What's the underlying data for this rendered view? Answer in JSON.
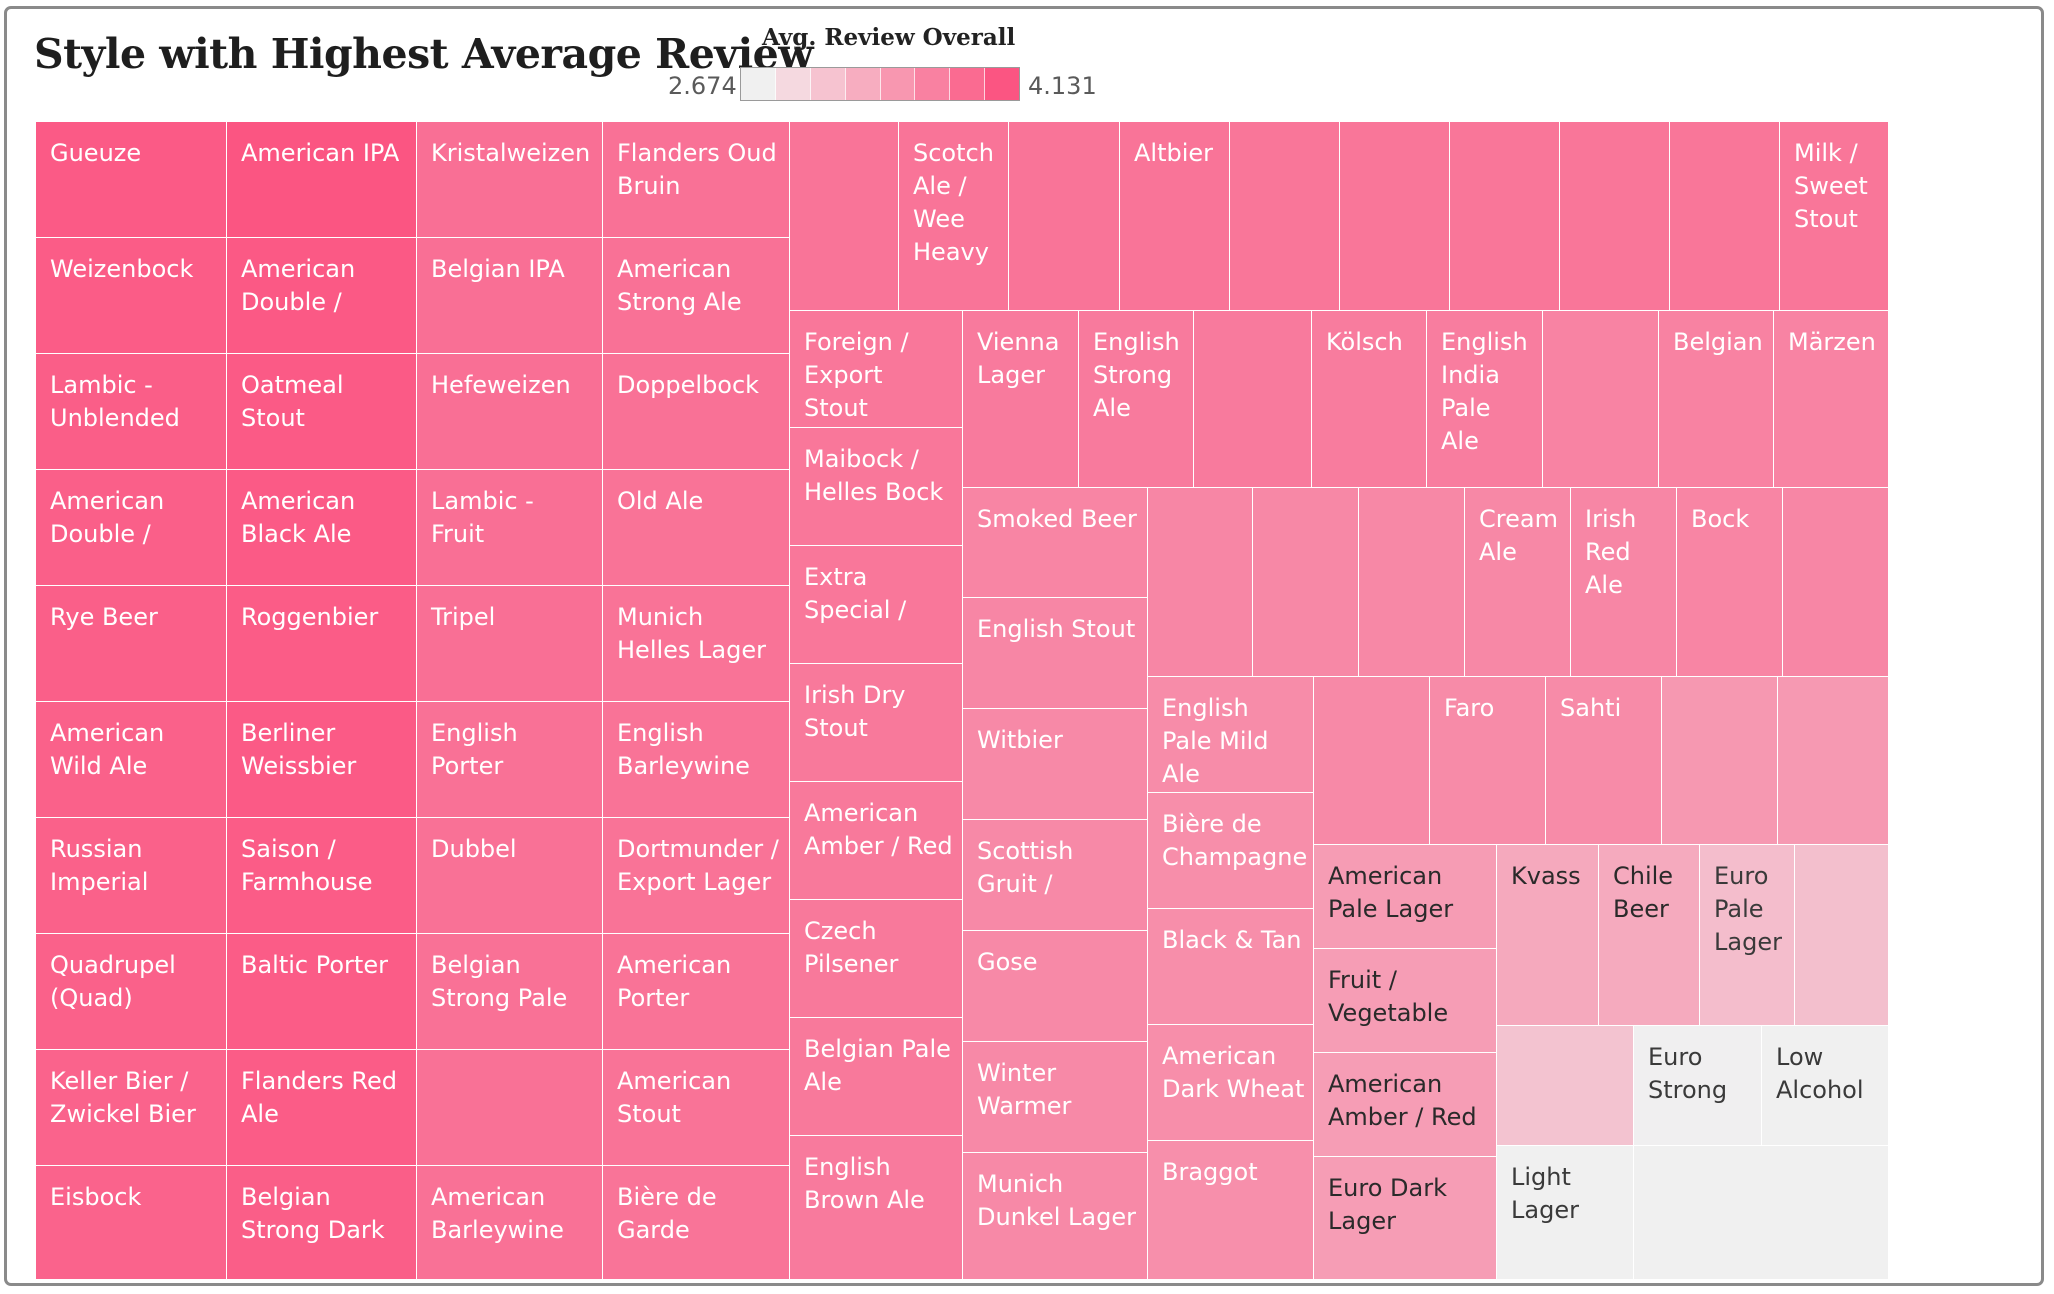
{
  "title": "Style with Highest Average Review",
  "legend": {
    "title": "Avg. Review Overall",
    "min_label": "2.674",
    "max_label": "4.131",
    "colors": [
      "#f0f0f0",
      "#f5d9e0",
      "#f6c3d0",
      "#f7adc0",
      "#f897b0",
      "#f981a1",
      "#fa6b91",
      "#fb5582"
    ]
  },
  "chart_data": {
    "type": "treemap",
    "measure": "Avg. Review Overall",
    "color_range": [
      2.674,
      4.131
    ],
    "cells": [
      {
        "name": "Gueuze",
        "value": 4.1
      },
      {
        "name": "Weizenbock",
        "value": 4.09
      },
      {
        "name": "Lambic - Unblended",
        "value": 4.08
      },
      {
        "name": "American Double /",
        "value": 4.07
      },
      {
        "name": "Rye Beer",
        "value": 4.07
      },
      {
        "name": "American Wild Ale",
        "value": 4.06
      },
      {
        "name": "Russian Imperial",
        "value": 4.06
      },
      {
        "name": "Quadrupel (Quad)",
        "value": 4.06
      },
      {
        "name": "Keller Bier / Zwickel Bier",
        "value": 4.05
      },
      {
        "name": "Eisbock",
        "value": 4.05
      },
      {
        "name": "American IPA",
        "value": 4.13
      },
      {
        "name": "American Double /",
        "value": 4.11
      },
      {
        "name": "Oatmeal Stout",
        "value": 4.1
      },
      {
        "name": "American Black Ale",
        "value": 4.1
      },
      {
        "name": "Roggenbier",
        "value": 4.09
      },
      {
        "name": "Berliner Weissbier",
        "value": 4.1
      },
      {
        "name": "Saison / Farmhouse",
        "value": 4.09
      },
      {
        "name": "Baltic Porter",
        "value": 4.09
      },
      {
        "name": "Flanders Red Ale",
        "value": 4.09
      },
      {
        "name": "Belgian Strong Dark",
        "value": 4.08
      },
      {
        "name": "Kristalweizen",
        "value": 3.97
      },
      {
        "name": "Belgian IPA",
        "value": 3.97
      },
      {
        "name": "Hefeweizen",
        "value": 3.97
      },
      {
        "name": "Lambic - Fruit",
        "value": 3.97
      },
      {
        "name": "Tripel",
        "value": 3.97
      },
      {
        "name": "English Porter",
        "value": 3.96
      },
      {
        "name": "Dubbel",
        "value": 3.96
      },
      {
        "name": "Belgian Strong Pale",
        "value": 3.96
      },
      {
        "name": "",
        "value": 3.96
      },
      {
        "name": "American Barleywine",
        "value": 3.96
      },
      {
        "name": "Flanders Oud Bruin",
        "value": 3.96
      },
      {
        "name": "American Strong Ale",
        "value": 3.96
      },
      {
        "name": "Doppelbock",
        "value": 3.96
      },
      {
        "name": "Old Ale",
        "value": 3.95
      },
      {
        "name": "Munich Helles Lager",
        "value": 3.95
      },
      {
        "name": "English Barleywine",
        "value": 3.95
      },
      {
        "name": "Dortmunder / Export Lager",
        "value": 3.95
      },
      {
        "name": "American Porter",
        "value": 3.95
      },
      {
        "name": "American Stout",
        "value": 3.95
      },
      {
        "name": "Bière de Garde",
        "value": 3.94
      },
      {
        "name": "",
        "value": 3.94
      },
      {
        "name": "Scotch Ale / Wee Heavy",
        "value": 3.94
      },
      {
        "name": "",
        "value": 3.94
      },
      {
        "name": "Altbier",
        "value": 3.94
      },
      {
        "name": "",
        "value": 3.93
      },
      {
        "name": "",
        "value": 3.93
      },
      {
        "name": "",
        "value": 3.93
      },
      {
        "name": "",
        "value": 3.93
      },
      {
        "name": "",
        "value": 3.93
      },
      {
        "name": "Milk / Sweet Stout",
        "value": 3.93
      },
      {
        "name": "Foreign / Export Stout",
        "value": 3.92
      },
      {
        "name": "Maibock / Helles Bock",
        "value": 3.92
      },
      {
        "name": "Extra Special /",
        "value": 3.92
      },
      {
        "name": "Irish Dry Stout",
        "value": 3.91
      },
      {
        "name": "American Amber / Red",
        "value": 3.91
      },
      {
        "name": "Czech Pilsener",
        "value": 3.91
      },
      {
        "name": "Belgian Pale Ale",
        "value": 3.91
      },
      {
        "name": "English Brown Ale",
        "value": 3.9
      },
      {
        "name": "Vienna Lager",
        "value": 3.9
      },
      {
        "name": "English Strong Ale",
        "value": 3.9
      },
      {
        "name": "",
        "value": 3.9
      },
      {
        "name": "Kölsch",
        "value": 3.89
      },
      {
        "name": "English India Pale Ale",
        "value": 3.88
      },
      {
        "name": "",
        "value": 3.84
      },
      {
        "name": "Belgian",
        "value": 3.85
      },
      {
        "name": "Märzen",
        "value": 3.84
      },
      {
        "name": "Smoked Beer",
        "value": 3.83
      },
      {
        "name": "English Stout",
        "value": 3.82
      },
      {
        "name": "Witbier",
        "value": 3.8
      },
      {
        "name": "Scottish Gruit /",
        "value": 3.8
      },
      {
        "name": "Gose",
        "value": 3.8
      },
      {
        "name": "Winter Warmer",
        "value": 3.8
      },
      {
        "name": "Munich Dunkel Lager",
        "value": 3.8
      },
      {
        "name": "",
        "value": 3.82
      },
      {
        "name": "",
        "value": 3.81
      },
      {
        "name": "",
        "value": 3.81
      },
      {
        "name": "Cream Ale",
        "value": 3.81
      },
      {
        "name": "Irish Red Ale",
        "value": 3.82
      },
      {
        "name": "Bock",
        "value": 3.83
      },
      {
        "name": "",
        "value": 3.82
      },
      {
        "name": "English Pale Mild Ale",
        "value": 3.78
      },
      {
        "name": "Bière de Champagne",
        "value": 3.77
      },
      {
        "name": "Black & Tan",
        "value": 3.77
      },
      {
        "name": "American Dark Wheat",
        "value": 3.77
      },
      {
        "name": "Braggot",
        "value": 3.76
      },
      {
        "name": "",
        "value": 3.8
      },
      {
        "name": "Faro",
        "value": 3.79
      },
      {
        "name": "Sahti",
        "value": 3.79
      },
      {
        "name": "",
        "value": 3.7
      },
      {
        "name": "",
        "value": 3.69
      },
      {
        "name": "American Pale Lager",
        "value": 3.67
      },
      {
        "name": "Fruit / Vegetable",
        "value": 3.66
      },
      {
        "name": "American Amber / Red",
        "value": 3.66
      },
      {
        "name": "Euro Dark Lager",
        "value": 3.66
      },
      {
        "name": "Kvass",
        "value": 3.57
      },
      {
        "name": "Chile Beer",
        "value": 3.56
      },
      {
        "name": "Euro Pale Lager",
        "value": 3.4
      },
      {
        "name": "",
        "value": 3.38
      },
      {
        "name": "",
        "value": 3.35
      },
      {
        "name": "Euro Strong",
        "value": 2.72
      },
      {
        "name": "Low Alcohol",
        "value": 2.7
      },
      {
        "name": "Light Lager",
        "value": 2.68
      },
      {
        "name": "",
        "value": 2.674
      }
    ]
  }
}
